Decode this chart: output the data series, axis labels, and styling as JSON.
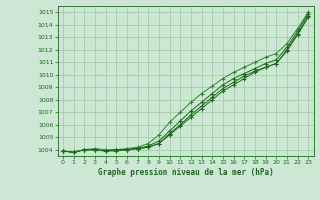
{
  "title": "Graphe pression niveau de la mer (hPa)",
  "xlim": [
    -0.5,
    23.5
  ],
  "ylim": [
    1003.5,
    1015.5
  ],
  "yticks": [
    1004,
    1005,
    1006,
    1007,
    1008,
    1009,
    1010,
    1011,
    1012,
    1013,
    1014,
    1015
  ],
  "xticks": [
    0,
    1,
    2,
    3,
    4,
    5,
    6,
    7,
    8,
    9,
    10,
    11,
    12,
    13,
    14,
    15,
    16,
    17,
    18,
    19,
    20,
    21,
    22,
    23
  ],
  "bg_color": "#cce8d4",
  "grid_color": "#99cc99",
  "line_color_dark": "#1a6b1a",
  "line_color_light": "#2d8b2d",
  "series": {
    "s1": [
      1003.9,
      1003.8,
      1004.0,
      1004.0,
      1003.9,
      1004.0,
      1004.0,
      1004.1,
      1004.2,
      1004.5,
      1005.3,
      1006.0,
      1006.8,
      1007.5,
      1008.2,
      1008.9,
      1009.4,
      1009.9,
      1010.3,
      1010.6,
      1010.9,
      1012.0,
      1013.3,
      1014.7
    ],
    "s2": [
      1003.9,
      1003.8,
      1004.0,
      1004.0,
      1003.9,
      1004.0,
      1004.0,
      1004.1,
      1004.3,
      1004.7,
      1005.5,
      1006.3,
      1007.1,
      1007.8,
      1008.5,
      1009.2,
      1009.7,
      1010.1,
      1010.5,
      1010.9,
      1011.2,
      1012.2,
      1013.5,
      1014.9
    ],
    "s3": [
      1003.9,
      1003.8,
      1004.0,
      1004.1,
      1004.0,
      1004.0,
      1004.1,
      1004.2,
      1004.5,
      1005.2,
      1006.2,
      1007.0,
      1007.8,
      1008.5,
      1009.1,
      1009.7,
      1010.2,
      1010.6,
      1011.0,
      1011.4,
      1011.7,
      1012.5,
      1013.7,
      1015.0
    ],
    "s4": [
      1003.9,
      1003.8,
      1004.0,
      1004.0,
      1003.9,
      1003.9,
      1004.0,
      1004.1,
      1004.2,
      1004.5,
      1005.2,
      1005.9,
      1006.6,
      1007.3,
      1008.0,
      1008.7,
      1009.2,
      1009.7,
      1010.2,
      1010.6,
      1010.9,
      1011.9,
      1013.2,
      1014.6
    ]
  }
}
